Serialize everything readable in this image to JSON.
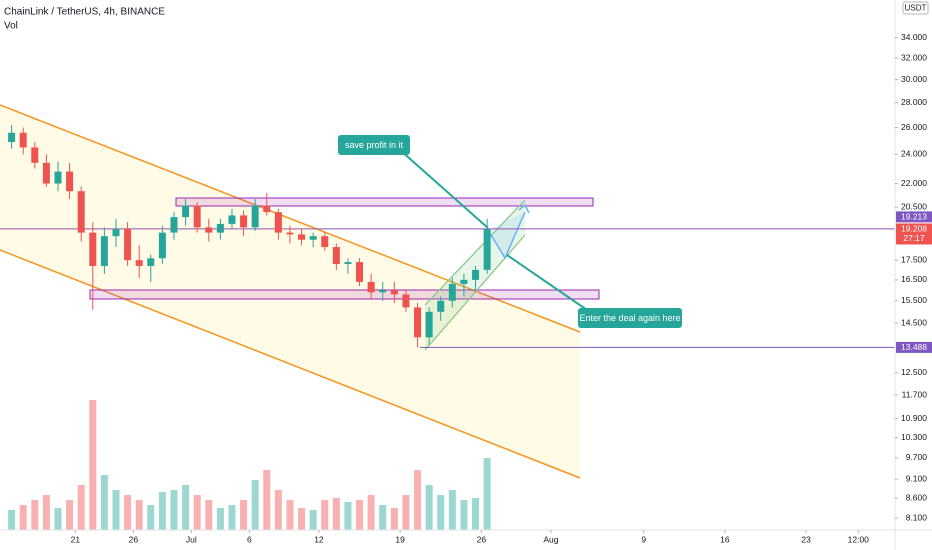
{
  "chart_data": {
    "type": "candlestick",
    "title": "ChainLink / TetherUS, 4h, BINANCE",
    "volume_label": "Vol",
    "currency": "USDT",
    "x": [
      "Jun 15",
      "Jun 16",
      "Jun 17",
      "Jun 18",
      "Jun 19",
      "Jun 20",
      "Jun 21",
      "Jun 22",
      "Jun 23",
      "Jun 24",
      "Jun 25",
      "Jun 26",
      "Jun 27",
      "Jun 28",
      "Jun 29",
      "Jun 30",
      "Jul 1",
      "Jul 2",
      "Jul 3",
      "Jul 4",
      "Jul 5",
      "Jul 6",
      "Jul 7",
      "Jul 8",
      "Jul 9",
      "Jul 10",
      "Jul 11",
      "Jul 12",
      "Jul 13",
      "Jul 14",
      "Jul 15",
      "Jul 16",
      "Jul 17",
      "Jul 18",
      "Jul 19",
      "Jul 20",
      "Jul 21",
      "Jul 22",
      "Jul 23",
      "Jul 24",
      "Jul 25",
      "Jul 26"
    ],
    "open": [
      24.9,
      25.6,
      24.5,
      23.4,
      22.0,
      22.8,
      21.5,
      19.0,
      17.2,
      18.8,
      19.2,
      17.5,
      17.2,
      17.6,
      19.0,
      19.9,
      20.6,
      19.3,
      19.0,
      19.5,
      20.0,
      19.3,
      20.6,
      20.2,
      19.0,
      18.9,
      18.6,
      18.8,
      18.2,
      17.3,
      17.4,
      16.4,
      15.9,
      16.0,
      15.8,
      15.2,
      13.9,
      15.0,
      15.5,
      16.3,
      16.5,
      17.0
    ],
    "high": [
      26.2,
      26.0,
      24.9,
      24.0,
      23.5,
      23.4,
      21.8,
      19.6,
      19.3,
      19.8,
      19.6,
      18.3,
      17.8,
      19.4,
      20.2,
      21.0,
      20.8,
      19.8,
      19.8,
      20.4,
      20.3,
      21.0,
      21.4,
      20.4,
      19.4,
      19.2,
      19.0,
      19.0,
      18.4,
      17.6,
      17.6,
      16.8,
      16.4,
      16.4,
      16.0,
      15.4,
      15.2,
      15.7,
      16.6,
      16.8,
      17.2,
      19.8
    ],
    "low": [
      24.4,
      24.0,
      23.0,
      21.8,
      21.5,
      21.0,
      18.5,
      15.1,
      16.8,
      18.2,
      17.2,
      16.6,
      16.4,
      17.3,
      18.6,
      19.4,
      19.0,
      18.5,
      18.6,
      19.2,
      18.8,
      19.1,
      20.0,
      18.6,
      18.4,
      18.3,
      18.2,
      18.0,
      17.0,
      16.8,
      16.2,
      15.6,
      15.5,
      15.4,
      15.0,
      13.488,
      13.6,
      14.6,
      15.2,
      15.7,
      16.0,
      16.8
    ],
    "close": [
      25.6,
      24.5,
      23.4,
      22.0,
      22.8,
      21.5,
      19.0,
      17.2,
      18.8,
      19.2,
      17.5,
      17.2,
      17.6,
      19.0,
      19.9,
      20.6,
      19.3,
      19.0,
      19.5,
      20.0,
      19.3,
      20.6,
      20.2,
      19.0,
      18.9,
      18.6,
      18.8,
      18.2,
      17.3,
      17.4,
      16.4,
      15.9,
      16.0,
      15.8,
      15.2,
      13.9,
      15.0,
      15.5,
      16.3,
      16.5,
      17.0,
      19.208
    ],
    "volume": [
      20,
      25,
      30,
      35,
      22,
      30,
      45,
      130,
      55,
      40,
      35,
      30,
      25,
      38,
      40,
      45,
      35,
      30,
      22,
      25,
      30,
      50,
      60,
      40,
      30,
      22,
      20,
      30,
      32,
      28,
      30,
      35,
      25,
      22,
      35,
      60,
      45,
      35,
      40,
      30,
      32,
      72
    ],
    "volume_lim": [
      0,
      140
    ],
    "colors": {
      "up": "#26a69a",
      "down": "#ef5350"
    },
    "log_scale": true,
    "grid": false,
    "ylim": [
      7.82,
      38.05
    ],
    "yticks": [
      {
        "value": 8.1,
        "label": "8.100"
      },
      {
        "value": 8.6,
        "label": "8.600"
      },
      {
        "value": 9.1,
        "label": "9.100"
      },
      {
        "value": 9.7,
        "label": "9.700"
      },
      {
        "value": 10.3,
        "label": "10.300"
      },
      {
        "value": 10.9,
        "label": "10.900"
      },
      {
        "value": 11.7,
        "label": "11.700"
      },
      {
        "value": 12.5,
        "label": "12.500"
      },
      {
        "value": 14.5,
        "label": "14.500"
      },
      {
        "value": 15.5,
        "label": "15.500"
      },
      {
        "value": 16.5,
        "label": "16.500"
      },
      {
        "value": 17.5,
        "label": "17.500"
      },
      {
        "value": 20.5,
        "label": "20.500"
      },
      {
        "value": 22,
        "label": "22.000"
      },
      {
        "value": 24,
        "label": "24.000"
      },
      {
        "value": 26,
        "label": "26.000"
      },
      {
        "value": 28,
        "label": "28.000"
      },
      {
        "value": 30,
        "label": "30.000"
      },
      {
        "value": 32,
        "label": "32.000"
      },
      {
        "value": 34,
        "label": "34.000"
      }
    ],
    "xlim": [
      "Jun 14 12:00",
      "Aug 30 16:00"
    ],
    "xticks": [
      {
        "value": "Jun 21",
        "label": "21"
      },
      {
        "value": "Jun 26",
        "label": "26"
      },
      {
        "value": "Jul 1",
        "label": "Jul"
      },
      {
        "value": "Jul 6",
        "label": "6"
      },
      {
        "value": "Jul 12",
        "label": "12"
      },
      {
        "value": "Jul 19",
        "label": "19"
      },
      {
        "value": "Jul 26",
        "label": "26"
      },
      {
        "value": "Aug 1",
        "label": "Aug"
      },
      {
        "value": "Aug 9",
        "label": "9"
      },
      {
        "value": "Aug 16",
        "label": "16"
      },
      {
        "value": "Aug 23",
        "label": "23"
      },
      {
        "value": "Aug 27 12:00",
        "label": "12:00"
      }
    ],
    "price_lines": [
      {
        "value": 19.213,
        "color": "#7e57c2"
      },
      {
        "value": 13.488,
        "color": "#7e57c2"
      }
    ],
    "last_price": {
      "value": 19.208,
      "countdown": "27:17",
      "color": "#ef5350"
    },
    "annotations": [
      "save profit in it",
      "Enter the deal again here"
    ]
  }
}
